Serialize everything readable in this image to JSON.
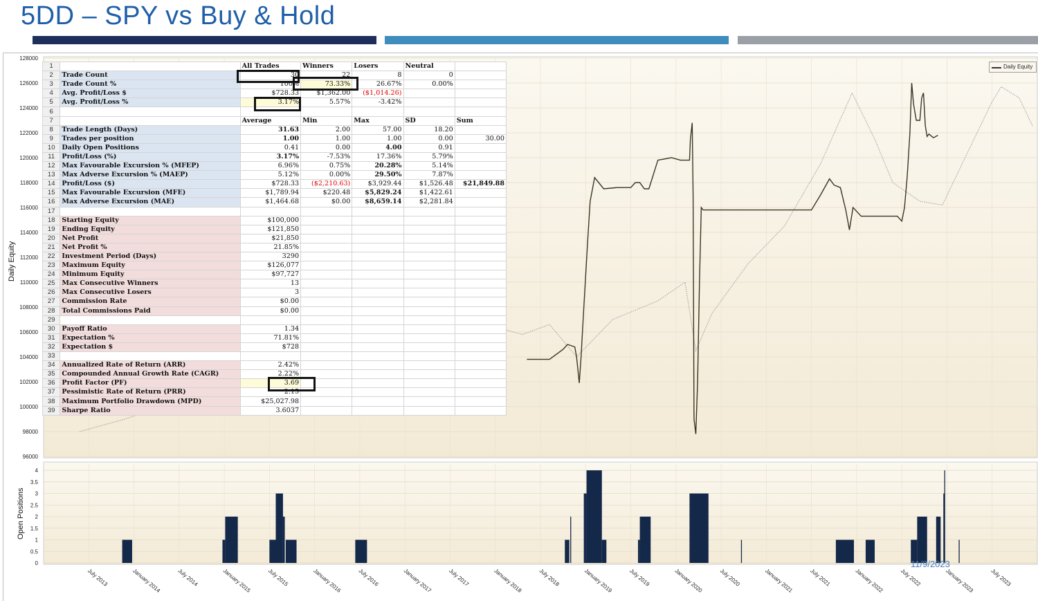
{
  "slide": {
    "title": "5DD – SPY vs Buy & Hold",
    "date": "11/9/2023",
    "colors": {
      "title": "#1f5fa8",
      "bar1": "#1e2f5c",
      "bar2": "#3f8cbf",
      "bar3": "#9aa0a6",
      "equity_line": "#3a3420",
      "spy_line": "#a8a8a8",
      "positions_fill": "#14284a"
    }
  },
  "chart_data": [
    {
      "type": "line",
      "ylabel": "Daily Equity",
      "ylim": [
        96000,
        128000
      ],
      "yticks": [
        "96000",
        "98000",
        "100000",
        "102000",
        "104000",
        "106000",
        "108000",
        "110000",
        "112000",
        "114000",
        "116000",
        "118000",
        "120000",
        "122000",
        "124000",
        "126000",
        "128000"
      ],
      "legend": {
        "entries": [
          "Daily Equity"
        ],
        "placement": "top-right"
      },
      "xticks": [
        "July 2013",
        "January 2014",
        "July 2014",
        "January 2015",
        "July 2015",
        "January 2016",
        "July 2016",
        "January 2017",
        "July 2017",
        "January 2018",
        "July 2018",
        "January 2019",
        "July 2019",
        "January 2020",
        "July 2020",
        "January 2021",
        "July 2021",
        "January 2022",
        "July 2022",
        "January 2023",
        "July 2023"
      ],
      "series": [
        {
          "name": "Daily Equity",
          "x": [
            2018.35,
            2018.55,
            2018.6,
            2018.75,
            2018.8,
            2018.88,
            2018.9,
            2018.93,
            2018.95,
            2018.98,
            2019.02,
            2019.05,
            2019.1,
            2019.2,
            2019.35,
            2019.5,
            2019.55,
            2019.6,
            2019.65,
            2019.7,
            2019.8,
            2019.95,
            2020.05,
            2020.12,
            2020.15,
            2020.16,
            2020.18,
            2020.19,
            2020.2,
            2020.22,
            2020.24,
            2020.26,
            2020.28,
            2020.3,
            2020.35,
            2020.55,
            2020.75,
            2021.0,
            2021.25,
            2021.4,
            2021.5,
            2021.6,
            2021.7,
            2021.75,
            2021.82,
            2021.88,
            2021.92,
            2021.96,
            2022.05,
            2022.2,
            2022.35,
            2022.45,
            2022.5,
            2022.53,
            2022.56,
            2022.59,
            2022.61,
            2022.63,
            2022.66,
            2022.7,
            2022.72,
            2022.74,
            2022.76,
            2022.78,
            2022.8,
            2022.85,
            2022.9
          ],
          "y": [
            103800,
            103800,
            103800,
            104600,
            105000,
            104800,
            104000,
            101900,
            104000,
            108000,
            113000,
            116500,
            118400,
            117500,
            117600,
            117600,
            118000,
            118000,
            117500,
            117500,
            119800,
            120000,
            119800,
            119800,
            119800,
            121500,
            122800,
            117000,
            99000,
            97800,
            102000,
            110000,
            116000,
            115800,
            115800,
            115800,
            115800,
            115800,
            115800,
            115800,
            115800,
            117000,
            118300,
            117800,
            117600,
            115800,
            114200,
            116000,
            115300,
            115300,
            115300,
            115300,
            114900,
            116000,
            118500,
            122000,
            126000,
            124300,
            123000,
            123000,
            124800,
            125200,
            122600,
            121700,
            121900,
            121600,
            121800
          ]
        },
        {
          "name": "SPY (Buy & Hold)",
          "x": [
            2013.4,
            2013.9,
            2014.5,
            2015.0,
            2015.5,
            2016.0,
            2016.5,
            2017.0,
            2017.5,
            2018.0,
            2018.3,
            2018.6,
            2018.9,
            2019.3,
            2019.8,
            2020.1,
            2020.22,
            2020.4,
            2020.8,
            2021.2,
            2021.6,
            2021.95,
            2022.2,
            2022.4,
            2022.7,
            2022.95,
            2023.2,
            2023.5,
            2023.6,
            2023.8,
            2023.95
          ],
          "y": [
            98000,
            99000,
            100500,
            101500,
            102500,
            102000,
            103500,
            104500,
            105200,
            106400,
            105800,
            106600,
            104000,
            107000,
            108500,
            110000,
            104500,
            107500,
            111500,
            114500,
            119500,
            125200,
            121500,
            118000,
            116500,
            116200,
            120000,
            124500,
            125700,
            124800,
            122500
          ]
        }
      ]
    },
    {
      "type": "bar",
      "ylabel": "Open Positions",
      "ylim": [
        0,
        4.3
      ],
      "yticks": [
        "0",
        "0.5",
        "1",
        "1.5",
        "2",
        "2.5",
        "3",
        "3.5",
        "4"
      ],
      "xticks": [
        "July 2013",
        "January 2014",
        "July 2014",
        "January 2015",
        "July 2015",
        "January 2016",
        "July 2016",
        "January 2017",
        "July 2017",
        "January 2018",
        "July 2018",
        "January 2019",
        "July 2019",
        "January 2020",
        "July 2020",
        "January 2021",
        "July 2021",
        "January 2022",
        "July 2022",
        "January 2023",
        "July 2023"
      ],
      "bars": [
        {
          "x0": 2013.87,
          "x1": 2013.98,
          "v": 1
        },
        {
          "x0": 2014.98,
          "x1": 2015.01,
          "v": 1
        },
        {
          "x0": 2015.01,
          "x1": 2015.15,
          "v": 2
        },
        {
          "x0": 2015.5,
          "x1": 2015.57,
          "v": 1
        },
        {
          "x0": 2015.57,
          "x1": 2015.65,
          "v": 3
        },
        {
          "x0": 2015.65,
          "x1": 2015.67,
          "v": 2
        },
        {
          "x0": 2015.68,
          "x1": 2015.8,
          "v": 1
        },
        {
          "x0": 2016.45,
          "x1": 2016.58,
          "v": 1
        },
        {
          "x0": 2018.77,
          "x1": 2018.82,
          "v": 1
        },
        {
          "x0": 2018.83,
          "x1": 2018.84,
          "v": 2
        },
        {
          "x0": 2018.98,
          "x1": 2019.01,
          "v": 3
        },
        {
          "x0": 2019.01,
          "x1": 2019.18,
          "v": 4
        },
        {
          "x0": 2019.18,
          "x1": 2019.23,
          "v": 1
        },
        {
          "x0": 2019.58,
          "x1": 2019.6,
          "v": 1
        },
        {
          "x0": 2019.6,
          "x1": 2019.72,
          "v": 2
        },
        {
          "x0": 2020.15,
          "x1": 2020.36,
          "v": 3
        },
        {
          "x0": 2020.72,
          "x1": 2020.73,
          "v": 1
        },
        {
          "x0": 2021.77,
          "x1": 2021.97,
          "v": 1
        },
        {
          "x0": 2022.1,
          "x1": 2022.2,
          "v": 1
        },
        {
          "x0": 2022.6,
          "x1": 2022.67,
          "v": 1
        },
        {
          "x0": 2022.67,
          "x1": 2022.78,
          "v": 2
        },
        {
          "x0": 2022.88,
          "x1": 2022.93,
          "v": 2
        },
        {
          "x0": 2022.96,
          "x1": 2022.97,
          "v": 3
        },
        {
          "x0": 2022.97,
          "x1": 2022.98,
          "v": 4
        },
        {
          "x0": 2023.13,
          "x1": 2023.14,
          "v": 1
        }
      ]
    }
  ],
  "legend_label": "Daily Equity",
  "stats": {
    "header1": [
      "All Trades",
      "Winners",
      "Losers",
      "Neutral"
    ],
    "header2": [
      "Average",
      "Min",
      "Max",
      "SD",
      "Sum"
    ],
    "rows": [
      {
        "n": "1",
        "label": "",
        "cells": [
          "All Trades",
          "Winners",
          "Losers",
          "Neutral",
          ""
        ],
        "kind": "header"
      },
      {
        "n": "2",
        "label": "Trade Count",
        "cells": [
          "30",
          "22",
          "8",
          "0",
          ""
        ],
        "kind": "blue"
      },
      {
        "n": "3",
        "label": "Trade Count %",
        "cells": [
          "100%",
          "73.33%",
          "26.67%",
          "0.00%",
          ""
        ],
        "kind": "blue"
      },
      {
        "n": "4",
        "label": "Avg. Profit/Loss $",
        "cells": [
          "$728.33",
          "$1,362.00",
          "($1,014.26)",
          "",
          ""
        ],
        "kind": "blue"
      },
      {
        "n": "5",
        "label": "Avg. Profit/Loss %",
        "cells": [
          "3.17%",
          "5.57%",
          "-3.42%",
          "",
          ""
        ],
        "kind": "blue"
      },
      {
        "n": "6",
        "label": "",
        "cells": [
          "",
          "",
          "",
          "",
          ""
        ],
        "kind": "empty"
      },
      {
        "n": "7",
        "label": "",
        "cells": [
          "Average",
          "Min",
          "Max",
          "SD",
          "Sum"
        ],
        "kind": "header"
      },
      {
        "n": "8",
        "label": "Trade Length (Days)",
        "cells": [
          "31.63",
          "2.00",
          "57.00",
          "18.20",
          ""
        ],
        "kind": "blue"
      },
      {
        "n": "9",
        "label": "Trades per position",
        "cells": [
          "1.00",
          "1.00",
          "1.00",
          "0.00",
          "30.00"
        ],
        "kind": "blue"
      },
      {
        "n": "10",
        "label": "Daily Open Positions",
        "cells": [
          "0.41",
          "0.00",
          "4.00",
          "0.91",
          ""
        ],
        "kind": "blue"
      },
      {
        "n": "11",
        "label": "Profit/Loss (%)",
        "cells": [
          "3.17%",
          "-7.53%",
          "17.36%",
          "5.79%",
          ""
        ],
        "kind": "blue"
      },
      {
        "n": "12",
        "label": "Max Favourable Excursion % (MFEP)",
        "cells": [
          "6.96%",
          "0.75%",
          "20.28%",
          "5.14%",
          ""
        ],
        "kind": "blue"
      },
      {
        "n": "13",
        "label": "Max Adverse Excursion % (MAEP)",
        "cells": [
          "5.12%",
          "0.00%",
          "29.50%",
          "7.87%",
          ""
        ],
        "kind": "blue"
      },
      {
        "n": "14",
        "label": "Profit/Loss ($)",
        "cells": [
          "$728.33",
          "($2,210.63)",
          "$3,929.44",
          "$1,526.48",
          "$21,849.88"
        ],
        "kind": "blue"
      },
      {
        "n": "15",
        "label": "Max Favourable Excursion (MFE)",
        "cells": [
          "$1,789.94",
          "$220.48",
          "$5,829.24",
          "$1,422.61",
          ""
        ],
        "kind": "blue"
      },
      {
        "n": "16",
        "label": "Max Adverse Excursion (MAE)",
        "cells": [
          "$1,464.68",
          "$0.00",
          "$8,659.14",
          "$2,281.84",
          ""
        ],
        "kind": "blue"
      },
      {
        "n": "17",
        "label": "",
        "cells": [
          "",
          "",
          "",
          "",
          ""
        ],
        "kind": "empty"
      },
      {
        "n": "18",
        "label": "Starting Equity",
        "cells": [
          "$100,000",
          "",
          "",
          "",
          ""
        ],
        "kind": "pink"
      },
      {
        "n": "19",
        "label": "Ending Equity",
        "cells": [
          "$121,850",
          "",
          "",
          "",
          ""
        ],
        "kind": "pink"
      },
      {
        "n": "20",
        "label": "Net Profit",
        "cells": [
          "$21,850",
          "",
          "",
          "",
          ""
        ],
        "kind": "pink"
      },
      {
        "n": "21",
        "label": "Net Profit %",
        "cells": [
          "21.85%",
          "",
          "",
          "",
          ""
        ],
        "kind": "pink"
      },
      {
        "n": "22",
        "label": "Investment Period (Days)",
        "cells": [
          "3290",
          "",
          "",
          "",
          ""
        ],
        "kind": "pink"
      },
      {
        "n": "23",
        "label": "Maximum Equity",
        "cells": [
          "$126,077",
          "",
          "",
          "",
          ""
        ],
        "kind": "pink"
      },
      {
        "n": "24",
        "label": "Minimum Equity",
        "cells": [
          "$97,727",
          "",
          "",
          "",
          ""
        ],
        "kind": "pink"
      },
      {
        "n": "25",
        "label": "Max Consecutive Winners",
        "cells": [
          "13",
          "",
          "",
          "",
          ""
        ],
        "kind": "pink"
      },
      {
        "n": "26",
        "label": "Max Consecutive Losers",
        "cells": [
          "3",
          "",
          "",
          "",
          ""
        ],
        "kind": "pink"
      },
      {
        "n": "27",
        "label": "Commission Rate",
        "cells": [
          "$0.00",
          "",
          "",
          "",
          ""
        ],
        "kind": "pink"
      },
      {
        "n": "28",
        "label": "Total Commissions Paid",
        "cells": [
          "$0.00",
          "",
          "",
          "",
          ""
        ],
        "kind": "pink"
      },
      {
        "n": "29",
        "label": "",
        "cells": [
          "",
          "",
          "",
          "",
          ""
        ],
        "kind": "empty"
      },
      {
        "n": "30",
        "label": "Payoff Ratio",
        "cells": [
          "1.34",
          "",
          "",
          "",
          ""
        ],
        "kind": "pink"
      },
      {
        "n": "31",
        "label": "Expectation %",
        "cells": [
          "71.81%",
          "",
          "",
          "",
          ""
        ],
        "kind": "pink"
      },
      {
        "n": "32",
        "label": "Expectation $",
        "cells": [
          "$728",
          "",
          "",
          "",
          ""
        ],
        "kind": "pink"
      },
      {
        "n": "33",
        "label": "",
        "cells": [
          "",
          "",
          "",
          "",
          ""
        ],
        "kind": "empty"
      },
      {
        "n": "34",
        "label": "Annualized Rate of Return (ARR)",
        "cells": [
          "2.42%",
          "",
          "",
          "",
          ""
        ],
        "kind": "pink"
      },
      {
        "n": "35",
        "label": "Compounded Annual Growth Rate (CAGR)",
        "cells": [
          "2.22%",
          "",
          "",
          "",
          ""
        ],
        "kind": "pink"
      },
      {
        "n": "36",
        "label": "Profit Factor (PF)",
        "cells": [
          "3.69",
          "",
          "",
          "",
          ""
        ],
        "kind": "pink"
      },
      {
        "n": "37",
        "label": "Pessimistic Rate of Return (PRR)",
        "cells": [
          "2.15",
          "",
          "",
          "",
          ""
        ],
        "kind": "pink"
      },
      {
        "n": "38",
        "label": "Maximum Portfolio Drawdown (MPD)",
        "cells": [
          "$25,027.98",
          "",
          "",
          "",
          ""
        ],
        "kind": "pink"
      },
      {
        "n": "39",
        "label": "Sharpe Ratio",
        "cells": [
          "3.6037",
          "",
          "",
          "",
          ""
        ],
        "kind": "pink"
      }
    ]
  }
}
